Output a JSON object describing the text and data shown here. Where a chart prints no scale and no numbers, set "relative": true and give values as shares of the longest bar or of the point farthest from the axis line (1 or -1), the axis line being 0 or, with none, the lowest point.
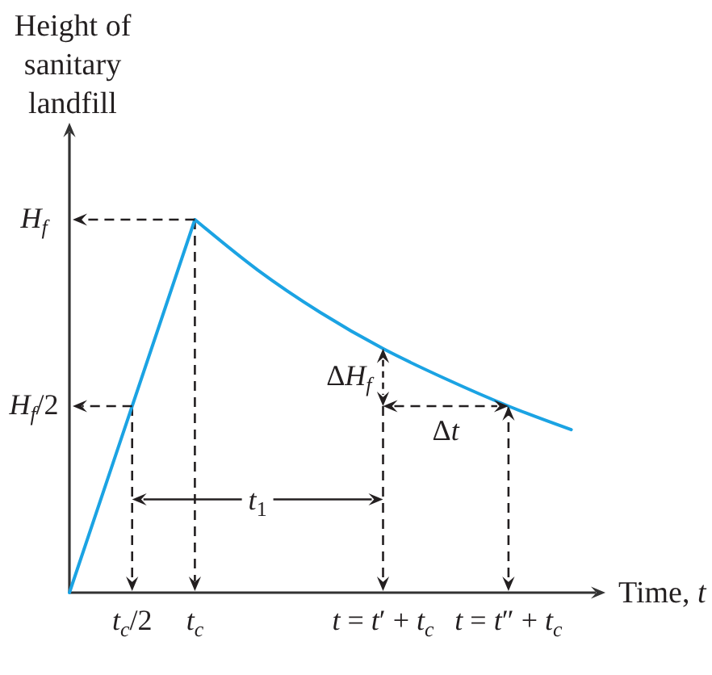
{
  "chart_data": {
    "type": "line",
    "relative": true,
    "ylabel": "Height of sanitary landfill",
    "xlabel": "Time, t",
    "categories": [
      null,
      "t$_{c}$/2",
      "t$_{c}$",
      null,
      null,
      "t = t′ + t$_{c}$",
      null,
      "t = t″ + t$_{c}$",
      null
    ],
    "series": [
      {
        "color": "#1ba3e3",
        "values": [
          0,
          0.5,
          1,
          0.865,
          0.751,
          0.654,
          0.573,
          0.5,
          0.437
        ]
      }
    ],
    "annotations": [
      {
        "text": "H$_{f}$",
        "x": "t$_{c}$",
        "y": 1
      },
      {
        "text": "H$_{f}$/2",
        "x": "t$_{c}$/2",
        "y": 0.5
      },
      "t$_{1}$",
      {
        "text": "ΔH$_{f}$",
        "x": "t = t′ + t$_{c}$",
        "y": 0.654
      },
      {
        "text": "Δt",
        "x": "t = t″ + t$_{c}$",
        "y": 0.5
      }
    ]
  }
}
